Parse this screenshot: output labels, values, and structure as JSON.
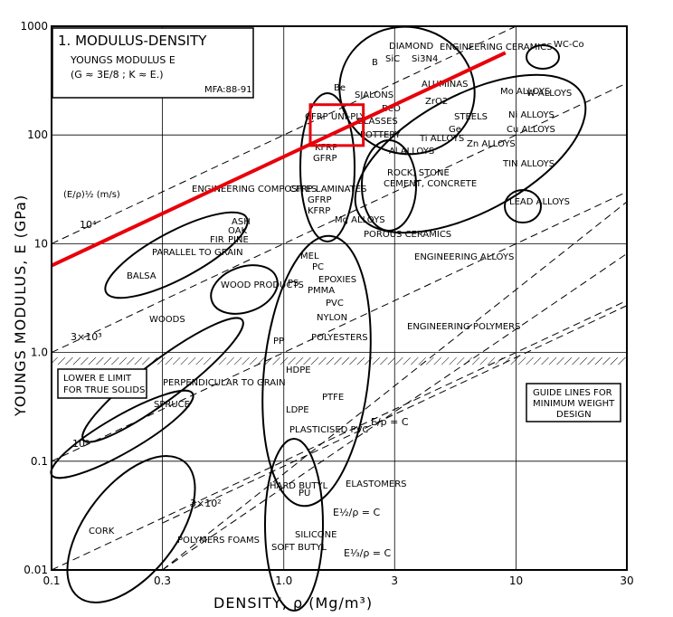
{
  "chart_data": {
    "type": "scatter",
    "title": "1. MODULUS-DENSITY",
    "subtitle": "YOUNGS MODULUS E",
    "subtitle2": "(G ≈ 3E/8 ; K ≈ E.)",
    "ref": "MFA:88-91",
    "xlabel": "DENSITY, ρ (Mg/m³)",
    "ylabel": "YOUNGS MODULUS, E (GPa)",
    "xscale": "log",
    "yscale": "log",
    "xlim": [
      0.1,
      30
    ],
    "ylim": [
      0.01,
      1000
    ],
    "grid": true,
    "x_ticks": [
      {
        "v": 0.1,
        "t": "0.1"
      },
      {
        "v": 0.3,
        "t": "0.3"
      },
      {
        "v": 1,
        "t": "1.0"
      },
      {
        "v": 3,
        "t": "3"
      },
      {
        "v": 10,
        "t": "10"
      },
      {
        "v": 30,
        "t": "30"
      }
    ],
    "y_ticks": [
      {
        "v": 1000,
        "t": "1000"
      },
      {
        "v": 100,
        "t": "100"
      },
      {
        "v": 10,
        "t": "10"
      },
      {
        "v": 1,
        "t": "1.0"
      },
      {
        "v": 0.1,
        "t": "0.1"
      },
      {
        "v": 0.01,
        "t": "0.01"
      }
    ],
    "lower_limit_label": [
      "LOWER E LIMIT",
      "FOR TRUE SOLIDS"
    ],
    "lower_limit_value": 0.9,
    "guide_box": [
      "GUIDE LINES FOR",
      "MINIMUM WEIGHT",
      "DESIGN"
    ],
    "guide_labels": {
      "e_rho": "E/ρ = C",
      "e12_rho": "E½/ρ = C",
      "e13_rho": "E⅓/ρ = C",
      "units": "(E/ρ)½ (m/s)"
    },
    "velocity_labels": [
      "10⁴",
      "3×10³",
      "10³",
      "3×10²"
    ],
    "red_line": {
      "x": [
        0.1,
        9.0
      ],
      "y": [
        6.3,
        570
      ]
    },
    "highlight": {
      "x": [
        1.3,
        2.2
      ],
      "y": [
        80,
        190
      ],
      "label": "CFRP UNI-PLY"
    },
    "classes": [
      {
        "name": "ENGINEERING CERAMICS",
        "members": [
          "DIAMOND",
          "B",
          "SiC",
          "Si3N4",
          "Be",
          "SIALONS",
          "ALUMINAS",
          "ZrO2",
          "BeO",
          "GLASSES",
          "POTTERY",
          "Ge"
        ]
      },
      {
        "name": "ENGINEERING ALLOYS",
        "members": [
          "WC-Co",
          "W-ALLOYS",
          "Mo ALLOYS",
          "Ni ALLOYS",
          "STEELS",
          "Cu ALLOYS",
          "Ti ALLOYS",
          "Zn ALLOYS",
          "TIN ALLOYS",
          "LEAD ALLOYS",
          "Al ALLOYS",
          "Mg ALLOYS"
        ]
      },
      {
        "name": "ENGINEERING COMPOSITES",
        "members": [
          "CFRP UNI-PLY",
          "KFRP",
          "GFRP",
          "CFRP LAMINATES",
          "GFRP",
          "KFRP"
        ]
      },
      {
        "name": "POROUS CERAMICS",
        "members": [
          "ROCK, STONE",
          "CEMENT, CONCRETE"
        ]
      },
      {
        "name": "WOODS",
        "members": [
          "PARALLEL TO GRAIN",
          "PERPENDICULAR TO GRAIN",
          "BALSA",
          "FIR",
          "ASH",
          "OAK",
          "PINE",
          "SPRUCE",
          "WOOD PRODUCTS"
        ]
      },
      {
        "name": "ENGINEERING POLYMERS",
        "members": [
          "MEL",
          "PC",
          "EPOXIES",
          "PS",
          "PMMA",
          "PVC",
          "NYLON",
          "POLYESTERS",
          "PP",
          "HDPE",
          "LDPE",
          "PTFE",
          "PLASTICISED PVC"
        ]
      },
      {
        "name": "ELASTOMERS",
        "members": [
          "HARD BUTYL",
          "PU",
          "SILICONE",
          "SOFT BUTYL"
        ]
      },
      {
        "name": "POLYMERS FOAMS",
        "members": [
          "CORK"
        ]
      }
    ]
  }
}
